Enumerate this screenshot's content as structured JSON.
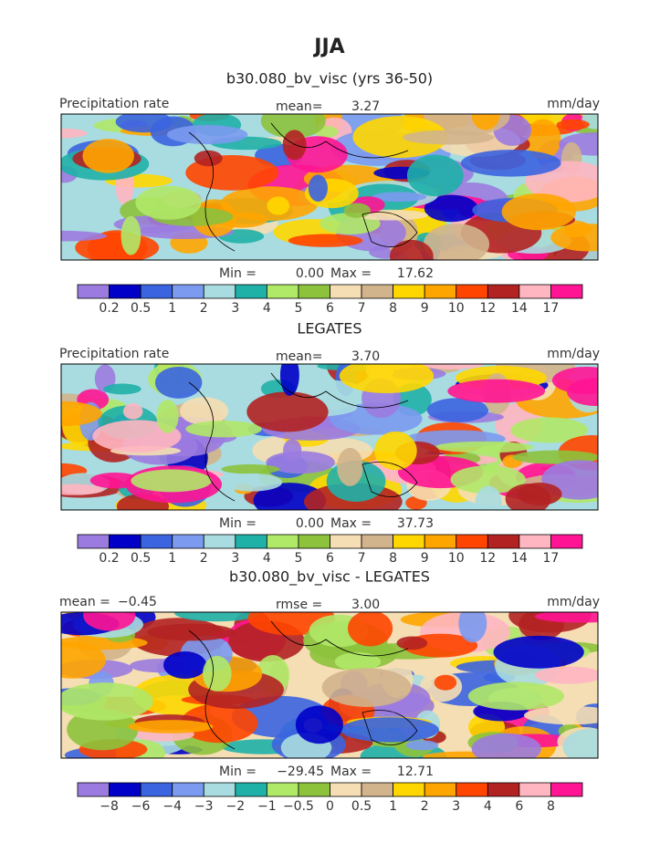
{
  "title": "JJA",
  "panels": [
    {
      "title": "b30.080_bv_visc (yrs 36-50)",
      "left": "Precipitation rate",
      "center_label": "mean=",
      "center_value": "3.27",
      "units": "mm/day",
      "min_label": "Min =",
      "min": "0.00",
      "max_label": "Max =",
      "max": "17.62",
      "colorbar": {
        "colors": [
          "#9b7be0",
          "#0000c8",
          "#3b64e0",
          "#7b9af0",
          "#a8dce0",
          "#1fb0a8",
          "#b0e868",
          "#8cc23c",
          "#f5deb3",
          "#d2b48c",
          "#ffd700",
          "#ffa500",
          "#ff4500",
          "#b22222",
          "#ffb6c1",
          "#ff1493"
        ],
        "labels": [
          "0.2",
          "0.5",
          "1",
          "2",
          "3",
          "4",
          "5",
          "6",
          "7",
          "8",
          "9",
          "10",
          "12",
          "14",
          "17"
        ]
      }
    },
    {
      "title": "LEGATES",
      "left": "Precipitation rate",
      "center_label": "mean=",
      "center_value": "3.70",
      "units": "mm/day",
      "min_label": "Min =",
      "min": "0.00",
      "max_label": "Max =",
      "max": "37.73",
      "colorbar": {
        "colors": [
          "#9b7be0",
          "#0000c8",
          "#3b64e0",
          "#7b9af0",
          "#a8dce0",
          "#1fb0a8",
          "#b0e868",
          "#8cc23c",
          "#f5deb3",
          "#d2b48c",
          "#ffd700",
          "#ffa500",
          "#ff4500",
          "#b22222",
          "#ffb6c1",
          "#ff1493"
        ],
        "labels": [
          "0.2",
          "0.5",
          "1",
          "2",
          "3",
          "4",
          "5",
          "6",
          "7",
          "8",
          "9",
          "10",
          "12",
          "14",
          "17"
        ]
      }
    },
    {
      "title": "b30.080_bv_visc - LEGATES",
      "left": "mean =",
      "left_value": "−0.45",
      "center_label": "rmse =",
      "center_value": "3.00",
      "units": "mm/day",
      "min_label": "Min =",
      "min": "−29.45",
      "max_label": "Max =",
      "max": "12.71",
      "colorbar": {
        "colors": [
          "#9b7be0",
          "#0000c8",
          "#3b64e0",
          "#7b9af0",
          "#a8dce0",
          "#1fb0a8",
          "#b0e868",
          "#8cc23c",
          "#f5deb3",
          "#d2b48c",
          "#ffd700",
          "#ffa500",
          "#ff4500",
          "#b22222",
          "#ffb6c1",
          "#ff1493"
        ],
        "labels": [
          "−8",
          "−6",
          "−4",
          "−3",
          "−2",
          "−1",
          "−0.5",
          "0",
          "0.5",
          "1",
          "2",
          "3",
          "4",
          "6",
          "8"
        ]
      }
    }
  ]
}
